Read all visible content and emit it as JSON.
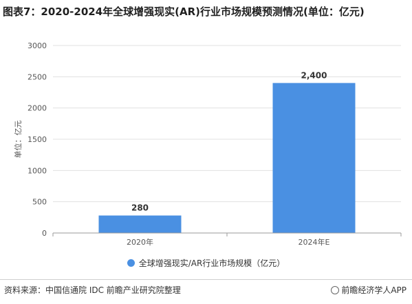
{
  "title": "图表7：2020-2024年全球增强现实(AR)行业市场规模预测情况(单位：亿元)",
  "colors": {
    "bar": "#4a90e2",
    "grid": "#e0e0e0",
    "axis": "#9a9a9a"
  },
  "chart_data": {
    "type": "bar",
    "categories": [
      "2020年",
      "2024年E"
    ],
    "series": [
      {
        "name": "全球增强现实/AR行业市场规模（亿元）",
        "values": [
          280,
          2400
        ]
      }
    ],
    "data_labels": [
      "280",
      "2,400"
    ],
    "ylabel": "单位：亿元",
    "ylim": [
      0,
      3000
    ],
    "yticks": [
      0,
      500,
      1000,
      1500,
      2000,
      2500,
      3000
    ],
    "grid": true,
    "legend": "bottom"
  },
  "footer": {
    "source": "资料来源：中国信通院 IDC 前瞻产业研究院整理",
    "brand": "前瞻经济学人APP",
    "brand_icon": "qianzhan-logo-icon"
  }
}
